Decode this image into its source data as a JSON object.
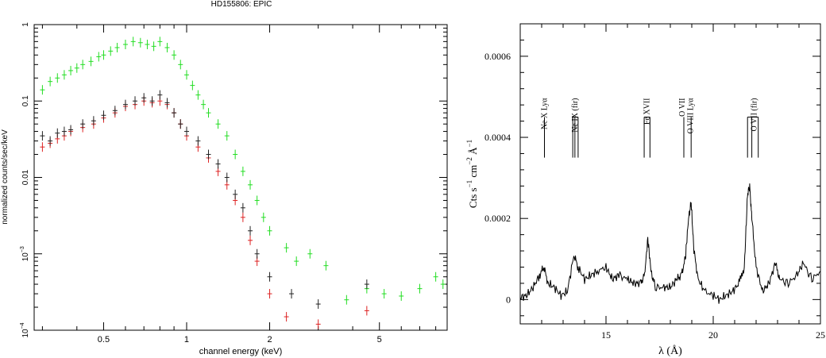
{
  "chart_data": [
    {
      "type": "scatter",
      "title": "HD155806: EPIC",
      "xlabel": "channel energy (keV)",
      "ylabel": "normalized counts/sec/keV",
      "xscale": "log",
      "yscale": "log",
      "xlim": [
        0.28,
        8.8
      ],
      "ylim": [
        0.0001,
        1
      ],
      "x_ticks": [
        {
          "value": 0.5,
          "label": "0.5"
        },
        {
          "value": 1,
          "label": "1"
        },
        {
          "value": 2,
          "label": "2"
        },
        {
          "value": 5,
          "label": "5"
        }
      ],
      "y_ticks": [
        {
          "value": 1,
          "label": "1",
          "exp": ""
        },
        {
          "value": 0.1,
          "label": "0.1",
          "exp": ""
        },
        {
          "value": 0.01,
          "label": "0.01",
          "exp": ""
        },
        {
          "value": 0.001,
          "label": "10",
          "exp": "−3"
        },
        {
          "value": 0.0001,
          "label": "10",
          "exp": "−4"
        }
      ],
      "grid": false,
      "legend": "none",
      "series": [
        {
          "color": "#22dd22",
          "points": [
            [
              0.3,
              0.14
            ],
            [
              0.32,
              0.18
            ],
            [
              0.34,
              0.2
            ],
            [
              0.36,
              0.22
            ],
            [
              0.38,
              0.25
            ],
            [
              0.4,
              0.27
            ],
            [
              0.42,
              0.3
            ],
            [
              0.45,
              0.33
            ],
            [
              0.48,
              0.38
            ],
            [
              0.5,
              0.4
            ],
            [
              0.53,
              0.45
            ],
            [
              0.56,
              0.5
            ],
            [
              0.6,
              0.55
            ],
            [
              0.64,
              0.6
            ],
            [
              0.68,
              0.58
            ],
            [
              0.72,
              0.55
            ],
            [
              0.76,
              0.52
            ],
            [
              0.8,
              0.6
            ],
            [
              0.85,
              0.5
            ],
            [
              0.9,
              0.4
            ],
            [
              0.95,
              0.3
            ],
            [
              1.0,
              0.22
            ],
            [
              1.05,
              0.16
            ],
            [
              1.1,
              0.12
            ],
            [
              1.15,
              0.09
            ],
            [
              1.2,
              0.07
            ],
            [
              1.3,
              0.05
            ],
            [
              1.4,
              0.035
            ],
            [
              1.5,
              0.02
            ],
            [
              1.6,
              0.012
            ],
            [
              1.7,
              0.008
            ],
            [
              1.8,
              0.005
            ],
            [
              1.9,
              0.003
            ],
            [
              2.0,
              0.002
            ],
            [
              2.3,
              0.0012
            ],
            [
              2.5,
              0.0008
            ],
            [
              2.8,
              0.001
            ],
            [
              3.2,
              0.0007
            ],
            [
              3.8,
              0.00025
            ],
            [
              4.5,
              0.00035
            ],
            [
              5.2,
              0.0003
            ],
            [
              6.0,
              0.00028
            ],
            [
              7.0,
              0.00035
            ],
            [
              8.0,
              0.0005
            ],
            [
              8.5,
              0.0004
            ]
          ]
        },
        {
          "color": "#dd2222",
          "points": [
            [
              0.3,
              0.025
            ],
            [
              0.32,
              0.028
            ],
            [
              0.34,
              0.032
            ],
            [
              0.36,
              0.035
            ],
            [
              0.38,
              0.04
            ],
            [
              0.42,
              0.045
            ],
            [
              0.46,
              0.05
            ],
            [
              0.5,
              0.06
            ],
            [
              0.55,
              0.07
            ],
            [
              0.6,
              0.085
            ],
            [
              0.65,
              0.09
            ],
            [
              0.7,
              0.1
            ],
            [
              0.75,
              0.095
            ],
            [
              0.8,
              0.1
            ],
            [
              0.85,
              0.09
            ],
            [
              0.9,
              0.07
            ],
            [
              0.95,
              0.05
            ],
            [
              1.0,
              0.035
            ],
            [
              1.1,
              0.025
            ],
            [
              1.2,
              0.018
            ],
            [
              1.3,
              0.012
            ],
            [
              1.4,
              0.008
            ],
            [
              1.5,
              0.005
            ],
            [
              1.6,
              0.003
            ],
            [
              1.7,
              0.0015
            ],
            [
              1.8,
              0.0008
            ],
            [
              2.0,
              0.0003
            ],
            [
              2.3,
              0.00015
            ],
            [
              3.0,
              0.00012
            ],
            [
              4.5,
              0.00018
            ]
          ]
        },
        {
          "color": "#222222",
          "points": [
            [
              0.3,
              0.035
            ],
            [
              0.32,
              0.03
            ],
            [
              0.34,
              0.038
            ],
            [
              0.36,
              0.04
            ],
            [
              0.38,
              0.042
            ],
            [
              0.42,
              0.05
            ],
            [
              0.46,
              0.055
            ],
            [
              0.5,
              0.065
            ],
            [
              0.55,
              0.075
            ],
            [
              0.6,
              0.09
            ],
            [
              0.65,
              0.1
            ],
            [
              0.7,
              0.11
            ],
            [
              0.75,
              0.1
            ],
            [
              0.8,
              0.12
            ],
            [
              0.85,
              0.095
            ],
            [
              0.9,
              0.07
            ],
            [
              0.95,
              0.05
            ],
            [
              1.0,
              0.04
            ],
            [
              1.1,
              0.03
            ],
            [
              1.2,
              0.02
            ],
            [
              1.3,
              0.015
            ],
            [
              1.4,
              0.01
            ],
            [
              1.5,
              0.006
            ],
            [
              1.6,
              0.004
            ],
            [
              1.7,
              0.002
            ],
            [
              1.8,
              0.001
            ],
            [
              2.0,
              0.0005
            ],
            [
              2.4,
              0.0003
            ],
            [
              3.0,
              0.00022
            ],
            [
              4.5,
              0.0004
            ]
          ]
        }
      ]
    },
    {
      "type": "line",
      "xlabel": "λ (Å)",
      "ylabel_parts": [
        "Cts s",
        "−1",
        " cm",
        "−2",
        " Å",
        "−1"
      ],
      "xlim": [
        11,
        25
      ],
      "ylim": [
        -6e-05,
        0.00068
      ],
      "x_ticks": [
        {
          "value": 15,
          "label": "15"
        },
        {
          "value": 20,
          "label": "20"
        },
        {
          "value": 25,
          "label": "25"
        }
      ],
      "y_ticks": [
        {
          "value": 0,
          "label": "0"
        },
        {
          "value": 0.0002,
          "label": "0.0002"
        },
        {
          "value": 0.0004,
          "label": "0.0004"
        },
        {
          "value": 0.0006,
          "label": "0.0006"
        }
      ],
      "grid": false,
      "legend": "none",
      "line_labels": [
        {
          "label": "Ne X Lyα",
          "wavelength": 12.13,
          "markers": [
            12.13
          ]
        },
        {
          "label": "Ne IX (fir)",
          "wavelength": 13.55,
          "markers": [
            13.45,
            13.55,
            13.7
          ]
        },
        {
          "label": "Fe XVII",
          "wavelength": 16.9,
          "markers": [
            16.78,
            17.05
          ]
        },
        {
          "label": "O VII",
          "wavelength": 18.55,
          "markers": [
            18.63
          ]
        },
        {
          "label": "O VIII Lyα",
          "wavelength": 18.95,
          "markers": [
            18.97
          ]
        },
        {
          "label": "O VII (fir)",
          "wavelength": 21.9,
          "markers": [
            21.6,
            21.8,
            22.1
          ]
        }
      ],
      "marker_range": [
        0.00035,
        0.00045
      ],
      "spectrum": [
        [
          11.0,
          5e-06
        ],
        [
          11.3,
          1e-05
        ],
        [
          11.6,
          3e-05
        ],
        [
          11.9,
          6e-05
        ],
        [
          12.1,
          8e-05
        ],
        [
          12.3,
          4e-05
        ],
        [
          12.6,
          3e-05
        ],
        [
          12.9,
          1e-05
        ],
        [
          13.2,
          2e-05
        ],
        [
          13.5,
          0.00011
        ],
        [
          13.7,
          8e-05
        ],
        [
          14.0,
          5e-05
        ],
        [
          14.3,
          6e-05
        ],
        [
          14.6,
          7e-05
        ],
        [
          15.0,
          8e-05
        ],
        [
          15.3,
          5e-05
        ],
        [
          15.6,
          6e-05
        ],
        [
          16.0,
          5e-05
        ],
        [
          16.3,
          4e-05
        ],
        [
          16.6,
          4e-05
        ],
        [
          16.8,
          6e-05
        ],
        [
          16.95,
          0.00015
        ],
        [
          17.1,
          7e-05
        ],
        [
          17.3,
          3e-05
        ],
        [
          17.7,
          3e-05
        ],
        [
          18.0,
          3e-05
        ],
        [
          18.3,
          5e-05
        ],
        [
          18.5,
          6e-05
        ],
        [
          18.7,
          0.0001
        ],
        [
          18.85,
          0.0002
        ],
        [
          18.97,
          0.00024
        ],
        [
          19.1,
          0.00012
        ],
        [
          19.3,
          5e-05
        ],
        [
          19.6,
          2e-05
        ],
        [
          20.0,
          1e-05
        ],
        [
          20.3,
          0.0
        ],
        [
          20.6,
          1e-05
        ],
        [
          20.9,
          2e-05
        ],
        [
          21.2,
          4e-05
        ],
        [
          21.45,
          8e-05
        ],
        [
          21.6,
          0.00026
        ],
        [
          21.7,
          0.00028
        ],
        [
          21.8,
          0.0002
        ],
        [
          22.0,
          8e-05
        ],
        [
          22.3,
          2e-05
        ],
        [
          22.6,
          4e-05
        ],
        [
          22.9,
          9e-05
        ],
        [
          23.1,
          5e-05
        ],
        [
          23.5,
          4e-05
        ],
        [
          23.9,
          6e-05
        ],
        [
          24.2,
          9e-05
        ],
        [
          24.6,
          5e-05
        ],
        [
          25.0,
          7e-05
        ]
      ]
    }
  ]
}
